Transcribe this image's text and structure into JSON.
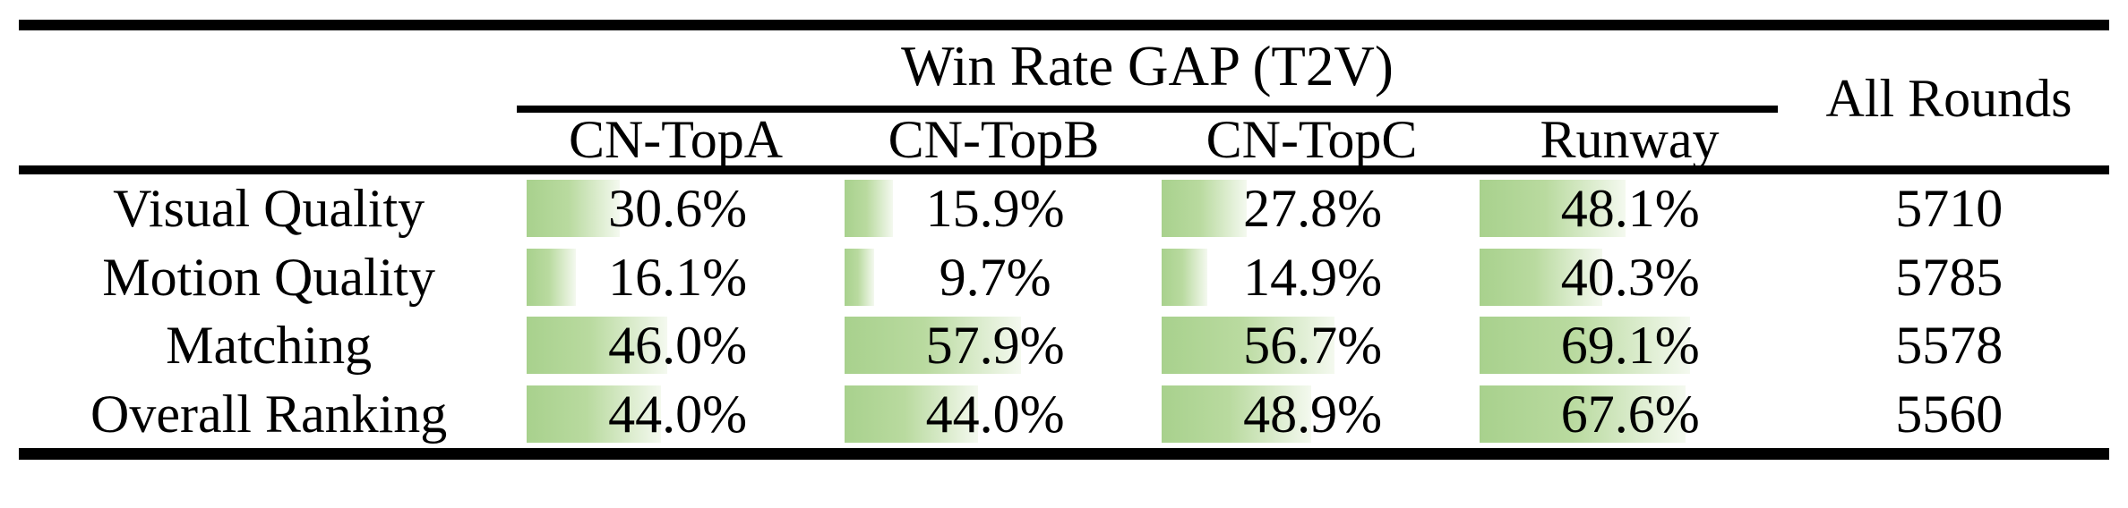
{
  "table": {
    "title": "Win Rate GAP (T2V)",
    "all_rounds_header": "All Rounds",
    "columns": [
      "CN-TopA",
      "CN-TopB",
      "CN-TopC",
      "Runway"
    ],
    "rows": [
      {
        "label": "Visual Quality",
        "cells": [
          "30.6%",
          "15.9%",
          "27.8%",
          "48.1%"
        ],
        "all_rounds": "5710"
      },
      {
        "label": "Motion Quality",
        "cells": [
          "16.1%",
          "9.7%",
          "14.9%",
          "40.3%"
        ],
        "all_rounds": "5785"
      },
      {
        "label": "Matching",
        "cells": [
          "46.0%",
          "57.9%",
          "56.7%",
          "69.1%"
        ],
        "all_rounds": "5578"
      },
      {
        "label": "Overall Ranking",
        "cells": [
          "44.0%",
          "44.0%",
          "48.9%",
          "67.6%"
        ],
        "all_rounds": "5560"
      }
    ],
    "colors": {
      "bar_gradient_start": "#a8d18d",
      "bar_gradient_mid": "#b9da9f",
      "bar_gradient_end": "#f4f9ef",
      "rule": "#000000",
      "text": "#000000"
    }
  },
  "chart_data": {
    "type": "table",
    "title": "Win Rate GAP (T2V)",
    "categories": [
      "Visual Quality",
      "Motion Quality",
      "Matching",
      "Overall Ranking"
    ],
    "series": [
      {
        "name": "CN-TopA",
        "values": [
          30.6,
          16.1,
          46.0,
          44.0
        ]
      },
      {
        "name": "CN-TopB",
        "values": [
          15.9,
          9.7,
          57.9,
          44.0
        ]
      },
      {
        "name": "CN-TopC",
        "values": [
          27.8,
          14.9,
          56.7,
          48.9
        ]
      },
      {
        "name": "Runway",
        "values": [
          48.1,
          40.3,
          69.1,
          67.6
        ]
      }
    ],
    "extra_column": {
      "name": "All Rounds",
      "values": [
        5710,
        5785,
        5578,
        5560
      ]
    },
    "unit": "%",
    "bar_scale_max": 100,
    "layout": "data bars rendered behind percentages, bar length = value/100 of cell width"
  }
}
